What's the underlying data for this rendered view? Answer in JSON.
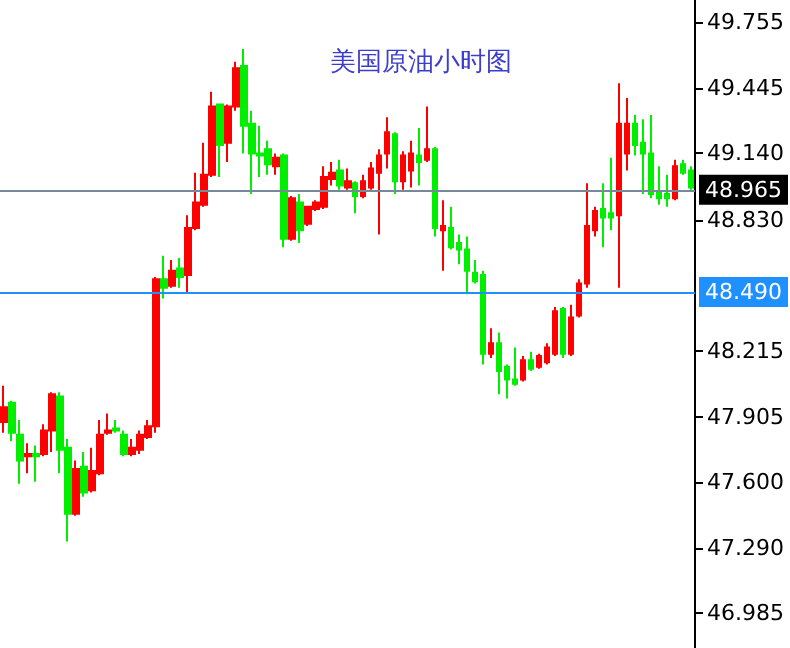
{
  "chart_data": {
    "type": "candlestick",
    "title": "美国原油小时图",
    "categories": [
      null,
      null,
      null,
      null,
      null,
      null,
      null,
      null,
      null,
      null,
      null,
      null,
      null,
      null,
      null,
      null,
      null,
      null,
      null,
      null,
      null,
      null,
      null,
      null,
      null,
      null,
      null,
      null,
      null,
      null,
      null,
      null,
      null,
      null,
      null,
      null,
      null,
      null,
      null,
      null,
      null,
      null,
      null,
      null,
      null,
      null,
      null,
      null,
      null,
      null,
      null,
      null,
      null,
      null,
      null,
      null,
      null,
      null,
      null,
      null,
      null,
      null,
      null,
      null,
      null,
      null,
      null,
      null,
      null,
      null,
      null,
      null,
      null,
      null,
      null,
      null,
      null,
      null,
      null,
      null,
      null,
      null,
      null,
      null,
      null,
      null,
      null
    ],
    "ohlc": [
      [
        47.88,
        48.05,
        47.83,
        47.95
      ],
      [
        47.97,
        47.98,
        47.79,
        47.83
      ],
      [
        47.82,
        47.89,
        47.59,
        47.7
      ],
      [
        47.72,
        47.78,
        47.64,
        47.73
      ],
      [
        47.73,
        47.77,
        47.6,
        47.72
      ],
      [
        47.73,
        47.87,
        47.72,
        47.84
      ],
      [
        47.84,
        48.02,
        47.74,
        48.01
      ],
      [
        48.0,
        48.02,
        47.64,
        47.75
      ],
      [
        47.76,
        47.8,
        47.32,
        47.45
      ],
      [
        47.45,
        47.7,
        47.44,
        47.66
      ],
      [
        47.67,
        47.74,
        47.53,
        47.55
      ],
      [
        47.56,
        47.76,
        47.55,
        47.65
      ],
      [
        47.64,
        47.89,
        47.63,
        47.82
      ],
      [
        47.83,
        47.92,
        47.82,
        47.84
      ],
      [
        47.85,
        47.89,
        47.83,
        47.84
      ],
      [
        47.82,
        47.84,
        47.72,
        47.73
      ],
      [
        47.73,
        47.8,
        47.72,
        47.76
      ],
      [
        47.75,
        47.84,
        47.73,
        47.82
      ],
      [
        47.81,
        47.89,
        47.8,
        47.86
      ],
      [
        47.86,
        48.56,
        47.83,
        48.55
      ],
      [
        48.55,
        48.66,
        48.46,
        48.51
      ],
      [
        48.52,
        48.64,
        48.51,
        48.59
      ],
      [
        48.6,
        48.65,
        48.51,
        48.56
      ],
      [
        48.57,
        48.85,
        48.49,
        48.79
      ],
      [
        48.79,
        49.05,
        48.78,
        48.91
      ],
      [
        48.9,
        49.19,
        48.89,
        49.04
      ],
      [
        49.04,
        49.43,
        49.03,
        49.36
      ],
      [
        49.37,
        49.37,
        49.03,
        49.18
      ],
      [
        49.19,
        49.37,
        49.1,
        49.36
      ],
      [
        49.36,
        49.57,
        49.34,
        49.54
      ],
      [
        49.55,
        49.63,
        49.14,
        49.27
      ],
      [
        49.28,
        49.34,
        48.95,
        49.14
      ],
      [
        49.14,
        49.27,
        49.03,
        49.13
      ],
      [
        49.16,
        49.2,
        49.04,
        49.09
      ],
      [
        49.08,
        49.14,
        49.04,
        49.12
      ],
      [
        49.13,
        49.14,
        48.7,
        48.74
      ],
      [
        48.74,
        48.94,
        48.73,
        48.93
      ],
      [
        48.91,
        48.95,
        48.72,
        48.78
      ],
      [
        48.81,
        48.89,
        48.8,
        48.89
      ],
      [
        48.88,
        48.92,
        48.87,
        48.91
      ],
      [
        48.89,
        49.08,
        48.88,
        49.03
      ],
      [
        49.02,
        49.1,
        48.99,
        49.05
      ],
      [
        49.06,
        49.11,
        48.97,
        48.99
      ],
      [
        48.98,
        49.07,
        48.97,
        49.01
      ],
      [
        49.0,
        49.01,
        48.86,
        48.94
      ],
      [
        48.94,
        49.04,
        48.93,
        49.01
      ],
      [
        48.98,
        49.1,
        48.97,
        49.07
      ],
      [
        49.05,
        49.16,
        48.76,
        49.13
      ],
      [
        49.14,
        49.31,
        49.07,
        49.24
      ],
      [
        49.23,
        49.24,
        48.95,
        49.01
      ],
      [
        49.01,
        49.15,
        48.97,
        49.13
      ],
      [
        49.06,
        49.2,
        48.98,
        49.14
      ],
      [
        49.13,
        49.26,
        48.99,
        49.1
      ],
      [
        49.11,
        49.36,
        49.1,
        49.16
      ],
      [
        49.16,
        49.17,
        48.75,
        48.79
      ],
      [
        48.78,
        48.92,
        48.59,
        48.8
      ],
      [
        48.79,
        48.89,
        48.69,
        48.7
      ],
      [
        48.72,
        48.76,
        48.62,
        48.69
      ],
      [
        48.69,
        48.75,
        48.48,
        48.59
      ],
      [
        48.58,
        48.64,
        48.53,
        48.54
      ],
      [
        48.57,
        48.59,
        48.15,
        48.2
      ],
      [
        48.2,
        48.32,
        48.18,
        48.25
      ],
      [
        48.25,
        48.3,
        48.01,
        48.12
      ],
      [
        48.14,
        48.15,
        47.99,
        48.08
      ],
      [
        48.08,
        48.23,
        48.05,
        48.06
      ],
      [
        48.08,
        48.19,
        48.07,
        48.17
      ],
      [
        48.17,
        48.21,
        48.12,
        48.13
      ],
      [
        48.14,
        48.2,
        48.13,
        48.19
      ],
      [
        48.16,
        48.25,
        48.15,
        48.23
      ],
      [
        48.2,
        48.42,
        48.19,
        48.4
      ],
      [
        48.41,
        48.42,
        48.18,
        48.2
      ],
      [
        48.2,
        48.43,
        48.19,
        48.37
      ],
      [
        48.38,
        48.55,
        48.37,
        48.53
      ],
      [
        48.53,
        49.0,
        48.51,
        48.8
      ],
      [
        48.78,
        48.89,
        48.75,
        48.87
      ],
      [
        48.88,
        49.0,
        48.7,
        48.84
      ],
      [
        48.86,
        49.12,
        48.78,
        48.84
      ],
      [
        48.85,
        49.47,
        48.51,
        49.28
      ],
      [
        49.14,
        49.4,
        49.06,
        49.28
      ],
      [
        49.28,
        49.32,
        49.13,
        49.18
      ],
      [
        49.19,
        49.3,
        48.95,
        49.14
      ],
      [
        49.14,
        49.32,
        48.93,
        48.95
      ],
      [
        48.96,
        49.08,
        48.9,
        48.93
      ],
      [
        48.95,
        49.04,
        48.89,
        48.93
      ],
      [
        48.93,
        49.11,
        48.92,
        49.08
      ],
      [
        49.09,
        49.11,
        49.04,
        49.05
      ],
      [
        49.06,
        49.08,
        48.97,
        48.98
      ]
    ],
    "colors": [
      "#ff0000",
      "#00ee00",
      "#00ee00",
      "#ff0000",
      "#00ee00",
      "#ff0000",
      "#ff0000",
      "#00ee00",
      "#00ee00",
      "#ff0000",
      "#00ee00",
      "#ff0000",
      "#ff0000",
      "#ff0000",
      "#00ee00",
      "#00ee00",
      "#ff0000",
      "#ff0000",
      "#ff0000",
      "#ff0000",
      "#00ee00",
      "#ff0000",
      "#00ee00",
      "#ff0000",
      "#ff0000",
      "#ff0000",
      "#ff0000",
      "#00ee00",
      "#ff0000",
      "#ff0000",
      "#00ee00",
      "#00ee00",
      "#00ee00",
      "#00ee00",
      "#ff0000",
      "#00ee00",
      "#ff0000",
      "#00ee00",
      "#ff0000",
      "#ff0000",
      "#ff0000",
      "#ff0000",
      "#00ee00",
      "#ff0000",
      "#00ee00",
      "#ff0000",
      "#ff0000",
      "#ff0000",
      "#ff0000",
      "#00ee00",
      "#ff0000",
      "#ff0000",
      "#00ee00",
      "#ff0000",
      "#00ee00",
      "#ff0000",
      "#00ee00",
      "#00ee00",
      "#00ee00",
      "#00ee00",
      "#00ee00",
      "#ff0000",
      "#00ee00",
      "#00ee00",
      "#00ee00",
      "#ff0000",
      "#00ee00",
      "#ff0000",
      "#ff0000",
      "#ff0000",
      "#00ee00",
      "#ff0000",
      "#ff0000",
      "#ff0000",
      "#ff0000",
      "#00ee00",
      "#00ee00",
      "#ff0000",
      "#ff0000",
      "#00ee00",
      "#00ee00",
      "#00ee00",
      "#00ee00",
      "#00ee00",
      "#ff0000",
      "#00ee00",
      "#00ee00"
    ],
    "ylim": [
      46.82,
      49.86
    ],
    "yticks": [
      {
        "value": 46.985,
        "label": "46.985"
      },
      {
        "value": 47.29,
        "label": "47.290"
      },
      {
        "value": 47.6,
        "label": "47.600"
      },
      {
        "value": 47.905,
        "label": "47.905"
      },
      {
        "value": 48.215,
        "label": "48.215"
      },
      {
        "value": 48.83,
        "label": "48.830"
      },
      {
        "value": 49.14,
        "label": "49.140"
      },
      {
        "value": 49.445,
        "label": "49.445"
      },
      {
        "value": 49.755,
        "label": "49.755"
      }
    ],
    "ref_lines": [
      {
        "axis": "y",
        "value": 48.965,
        "label": "48.965",
        "color": "#778899"
      },
      {
        "axis": "y",
        "value": 48.49,
        "label": "48.490",
        "color": "#1e90ff"
      }
    ],
    "tick_labels": "y",
    "grid": false
  }
}
